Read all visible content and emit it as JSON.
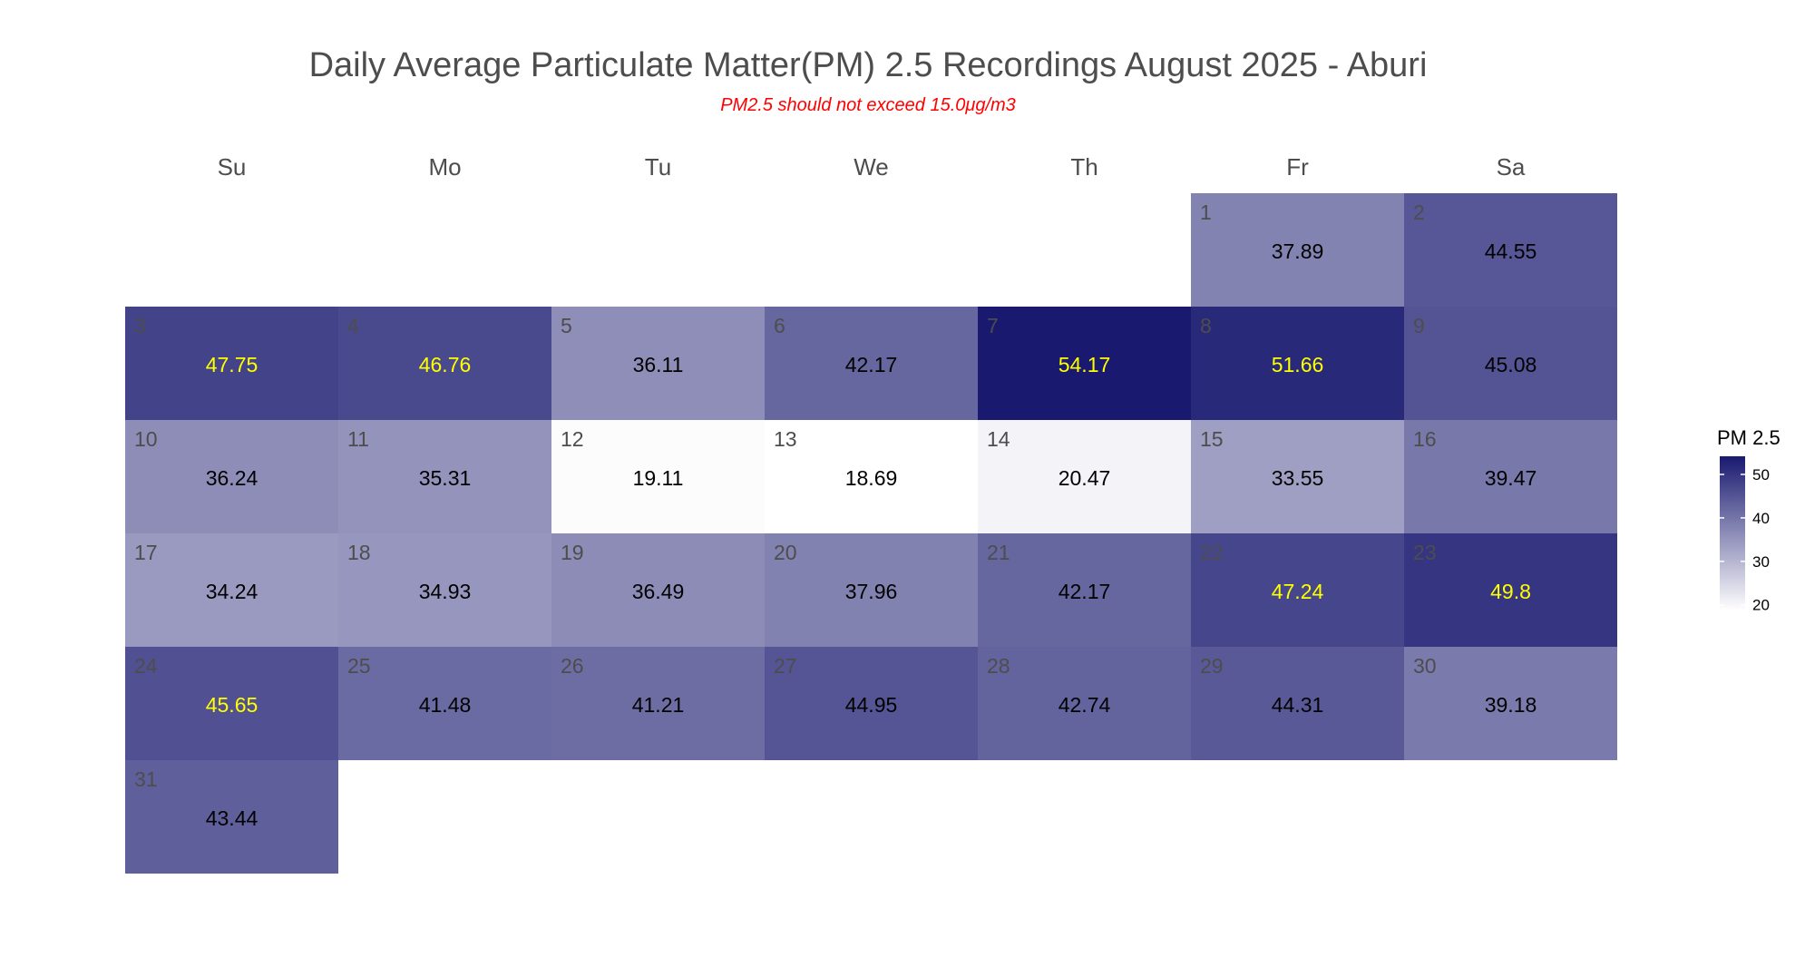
{
  "chart_data": {
    "type": "heatmap",
    "title": "Daily Average Particulate Matter(PM) 2.5 Recordings August 2025 -  Aburi",
    "subtitle": "PM2.5 should not exceed 15.0μg/m3",
    "weekdays": [
      "Su",
      "Mo",
      "Tu",
      "We",
      "Th",
      "Fr",
      "Sa"
    ],
    "first_weekday_index": 5,
    "days": [
      1,
      2,
      3,
      4,
      5,
      6,
      7,
      8,
      9,
      10,
      11,
      12,
      13,
      14,
      15,
      16,
      17,
      18,
      19,
      20,
      21,
      22,
      23,
      24,
      25,
      26,
      27,
      28,
      29,
      30,
      31
    ],
    "values": [
      37.89,
      44.55,
      47.75,
      46.76,
      36.11,
      42.17,
      54.17,
      51.66,
      45.08,
      36.24,
      35.31,
      19.11,
      18.69,
      20.47,
      33.55,
      39.47,
      34.24,
      34.93,
      36.49,
      37.96,
      42.17,
      47.24,
      49.8,
      45.65,
      41.48,
      41.21,
      44.95,
      42.74,
      44.31,
      39.18,
      43.44
    ],
    "highlight_threshold": 45.5,
    "color_scale": {
      "low": "#ffffff",
      "high": "#191970",
      "domain": [
        18.69,
        54.17
      ]
    },
    "value_text_colors": {
      "normal": "#000000",
      "highlight": "#ffff00"
    },
    "legend": {
      "title": "PM 2.5",
      "ticks": [
        20,
        30,
        40,
        50
      ],
      "position": "right"
    }
  }
}
